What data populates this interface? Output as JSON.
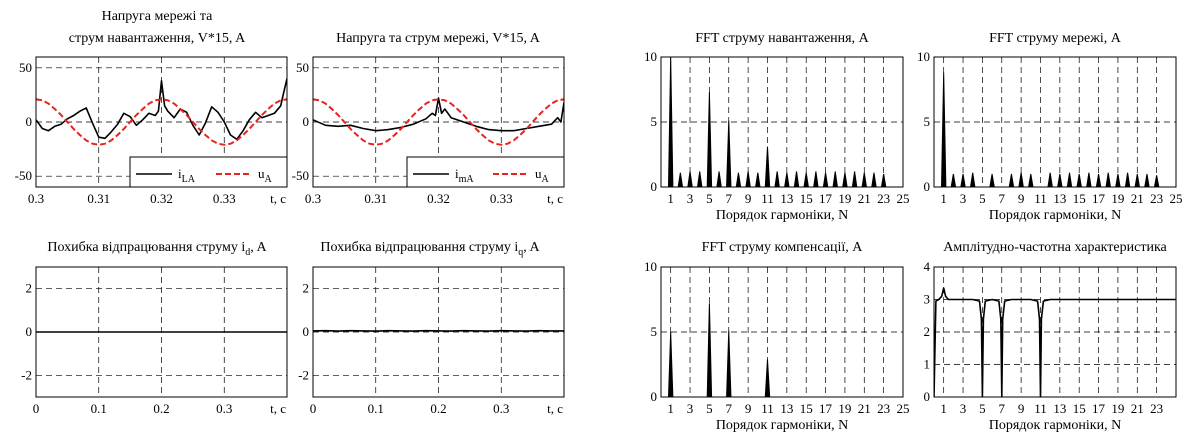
{
  "chart_data": [
    {
      "type": "line",
      "title": [
        "Напруга мережі та",
        "струм навантаження, V*15, A"
      ],
      "xlabel": "t, c",
      "xlim": [
        0.3,
        0.34
      ],
      "ylim": [
        -60,
        60
      ],
      "xticks": [
        {
          "v": 0.3,
          "label": "0.3"
        },
        {
          "v": 0.31,
          "label": "0.31"
        },
        {
          "v": 0.32,
          "label": "0.32"
        },
        {
          "v": 0.33,
          "label": "0.33"
        }
      ],
      "yticks": [
        {
          "v": 50,
          "label": "50"
        },
        {
          "v": 0,
          "label": "0"
        },
        {
          "v": -50,
          "label": "-50"
        }
      ],
      "grid": true,
      "legend_position": "bottom-right",
      "series": [
        {
          "name": "i",
          "sub": "LA",
          "color": "#000000",
          "dash": false,
          "x": [
            0.3,
            0.301,
            0.302,
            0.303,
            0.304,
            0.305,
            0.306,
            0.307,
            0.308,
            0.309,
            0.31,
            0.311,
            0.312,
            0.313,
            0.314,
            0.315,
            0.316,
            0.317,
            0.318,
            0.319,
            0.3195,
            0.32,
            0.3205,
            0.321,
            0.322,
            0.323,
            0.324,
            0.325,
            0.326,
            0.327,
            0.328,
            0.329,
            0.33,
            0.331,
            0.332,
            0.333,
            0.334,
            0.335,
            0.336,
            0.337,
            0.338,
            0.339,
            0.3395,
            0.34
          ],
          "y": [
            2,
            -6,
            -8,
            -4,
            -2,
            3,
            6,
            10,
            13,
            -1,
            -14,
            -15,
            -9,
            -2,
            8,
            5,
            -3,
            2,
            8,
            6,
            10,
            38,
            15,
            10,
            4,
            12,
            9,
            -3,
            -12,
            -1,
            14,
            9,
            0,
            -12,
            -16,
            -8,
            2,
            9,
            4,
            6,
            8,
            15,
            28,
            40
          ]
        },
        {
          "name": "u",
          "sub": "A",
          "color": "#e8231e",
          "dash": true,
          "x": [
            0.3,
            0.301,
            0.302,
            0.303,
            0.304,
            0.305,
            0.306,
            0.307,
            0.308,
            0.309,
            0.31,
            0.311,
            0.312,
            0.313,
            0.314,
            0.315,
            0.316,
            0.317,
            0.318,
            0.319,
            0.32,
            0.321,
            0.322,
            0.323,
            0.324,
            0.325,
            0.326,
            0.327,
            0.328,
            0.329,
            0.33,
            0.331,
            0.332,
            0.333,
            0.334,
            0.335,
            0.336,
            0.337,
            0.338,
            0.339,
            0.34
          ],
          "y": [
            21,
            20,
            17,
            12,
            6.5,
            0,
            -6.5,
            -12,
            -17,
            -20,
            -21,
            -20,
            -17,
            -12,
            -6.5,
            0,
            6.5,
            12,
            17,
            20,
            21,
            20,
            17,
            12,
            6.5,
            0,
            -6.5,
            -12,
            -17,
            -20,
            -21,
            -20,
            -17,
            -12,
            -6.5,
            0,
            6.5,
            12,
            17,
            20,
            21
          ]
        }
      ]
    },
    {
      "type": "line",
      "title": [
        "Напруга та струм мережі, V*15, A"
      ],
      "xlabel": "t, c",
      "xlim": [
        0.3,
        0.34
      ],
      "ylim": [
        -60,
        60
      ],
      "xticks": [
        {
          "v": 0.3,
          "label": "0.3"
        },
        {
          "v": 0.31,
          "label": "0.31"
        },
        {
          "v": 0.32,
          "label": "0.32"
        },
        {
          "v": 0.33,
          "label": "0.33"
        }
      ],
      "yticks": [
        {
          "v": 50,
          "label": "50"
        },
        {
          "v": 0,
          "label": "0"
        },
        {
          "v": -50,
          "label": "-50"
        }
      ],
      "grid": true,
      "legend_position": "bottom-right",
      "series": [
        {
          "name": "i",
          "sub": "mA",
          "color": "#000000",
          "dash": false,
          "x": [
            0.3,
            0.302,
            0.304,
            0.306,
            0.308,
            0.31,
            0.312,
            0.314,
            0.316,
            0.318,
            0.319,
            0.3195,
            0.32,
            0.3205,
            0.321,
            0.322,
            0.324,
            0.326,
            0.328,
            0.33,
            0.332,
            0.334,
            0.336,
            0.338,
            0.339,
            0.3395,
            0.34
          ],
          "y": [
            2,
            -3,
            -4,
            -3,
            -6,
            -8,
            -7,
            -5,
            -2,
            3,
            8,
            6,
            22,
            8,
            12,
            4,
            0,
            -4,
            -7,
            -8,
            -8,
            -6,
            -4,
            -2,
            4,
            0,
            18
          ]
        },
        {
          "name": "u",
          "sub": "A",
          "color": "#e8231e",
          "dash": true,
          "x": [
            0.3,
            0.301,
            0.302,
            0.303,
            0.304,
            0.305,
            0.306,
            0.307,
            0.308,
            0.309,
            0.31,
            0.311,
            0.312,
            0.313,
            0.314,
            0.315,
            0.316,
            0.317,
            0.318,
            0.319,
            0.32,
            0.321,
            0.322,
            0.323,
            0.324,
            0.325,
            0.326,
            0.327,
            0.328,
            0.329,
            0.33,
            0.331,
            0.332,
            0.333,
            0.334,
            0.335,
            0.336,
            0.337,
            0.338,
            0.339,
            0.34
          ],
          "y": [
            21,
            20,
            17,
            12,
            6.5,
            0,
            -6.5,
            -12,
            -17,
            -20,
            -21,
            -20,
            -17,
            -12,
            -6.5,
            0,
            6.5,
            12,
            17,
            20,
            21,
            20,
            17,
            12,
            6.5,
            0,
            -6.5,
            -12,
            -17,
            -20,
            -21,
            -20,
            -17,
            -12,
            -6.5,
            0,
            6.5,
            12,
            17,
            20,
            21
          ]
        }
      ]
    },
    {
      "type": "line",
      "title": [
        "Похибка відпрацювання струму i",
        "d",
        ", A"
      ],
      "xlabel": "t, c",
      "xlim": [
        0,
        0.4
      ],
      "ylim": [
        -3,
        3
      ],
      "xticks": [
        {
          "v": 0,
          "label": "0"
        },
        {
          "v": 0.1,
          "label": "0.1"
        },
        {
          "v": 0.2,
          "label": "0.2"
        },
        {
          "v": 0.3,
          "label": "0.3"
        }
      ],
      "yticks": [
        {
          "v": 2,
          "label": "2"
        },
        {
          "v": 0,
          "label": "0"
        },
        {
          "v": -2,
          "label": "-2"
        }
      ],
      "grid": true,
      "series": [
        {
          "color": "#000000",
          "dash": false,
          "x": [
            0,
            0.4
          ],
          "y": [
            0,
            0
          ]
        }
      ]
    },
    {
      "type": "line",
      "title": [
        "Похибка відпрацювання струму i",
        "q",
        ", A"
      ],
      "xlabel": "t, c",
      "xlim": [
        0,
        0.4
      ],
      "ylim": [
        -3,
        3
      ],
      "xticks": [
        {
          "v": 0,
          "label": "0"
        },
        {
          "v": 0.1,
          "label": "0.1"
        },
        {
          "v": 0.2,
          "label": "0.2"
        },
        {
          "v": 0.3,
          "label": "0.3"
        }
      ],
      "yticks": [
        {
          "v": 2,
          "label": "2"
        },
        {
          "v": 0,
          "label": "0"
        },
        {
          "v": -2,
          "label": "-2"
        }
      ],
      "grid": true,
      "series": [
        {
          "color": "#000000",
          "dash": false,
          "x": [
            0,
            0.02,
            0.04,
            0.06,
            0.08,
            0.1,
            0.12,
            0.14,
            0.16,
            0.18,
            0.2,
            0.22,
            0.24,
            0.26,
            0.28,
            0.3,
            0.32,
            0.34,
            0.36,
            0.38,
            0.4
          ],
          "y": [
            0.05,
            0.06,
            0.04,
            0.06,
            0.05,
            0.04,
            0.06,
            0.05,
            0.04,
            0.06,
            0.05,
            0.04,
            0.06,
            0.05,
            0.04,
            0.06,
            0.05,
            0.04,
            0.06,
            0.05,
            0.05
          ]
        }
      ]
    },
    {
      "type": "bar",
      "title": [
        "FFT струму навантаження, A"
      ],
      "xlabel": "Порядок гармоніки, N",
      "xlim": [
        0,
        25
      ],
      "ylim": [
        0,
        10
      ],
      "xticks": [
        {
          "v": 1,
          "label": "1"
        },
        {
          "v": 3,
          "label": "3"
        },
        {
          "v": 5,
          "label": "5"
        },
        {
          "v": 7,
          "label": "7"
        },
        {
          "v": 9,
          "label": "9"
        },
        {
          "v": 11,
          "label": "11"
        },
        {
          "v": 13,
          "label": "13"
        },
        {
          "v": 15,
          "label": "15"
        },
        {
          "v": 17,
          "label": "17"
        },
        {
          "v": 19,
          "label": "19"
        },
        {
          "v": 21,
          "label": "21"
        },
        {
          "v": 23,
          "label": "23"
        },
        {
          "v": 25,
          "label": "25"
        }
      ],
      "yticks": [
        {
          "v": 10,
          "label": "10"
        },
        {
          "v": 5,
          "label": "5"
        },
        {
          "v": 0,
          "label": "0"
        }
      ],
      "grid": true,
      "x": [
        1,
        2,
        3,
        4,
        5,
        6,
        7,
        8,
        9,
        10,
        11,
        12,
        13,
        14,
        15,
        16,
        17,
        18,
        19,
        20,
        21,
        22,
        23
      ],
      "values": [
        10,
        1.1,
        1.2,
        1.2,
        7.3,
        1.2,
        5.1,
        1.1,
        1.2,
        1.1,
        3.1,
        1.2,
        1.1,
        1.2,
        1.1,
        1.2,
        1.1,
        1.2,
        1.1,
        1.2,
        1.1,
        1.1,
        1.0
      ]
    },
    {
      "type": "bar",
      "title": [
        "FFT струму мережі, A"
      ],
      "xlabel": "Порядок гармоніки, N",
      "xlim": [
        0,
        25
      ],
      "ylim": [
        0,
        10
      ],
      "xticks": [
        {
          "v": 1,
          "label": "1"
        },
        {
          "v": 3,
          "label": "3"
        },
        {
          "v": 5,
          "label": "5"
        },
        {
          "v": 7,
          "label": "7"
        },
        {
          "v": 9,
          "label": "9"
        },
        {
          "v": 11,
          "label": "11"
        },
        {
          "v": 13,
          "label": "13"
        },
        {
          "v": 15,
          "label": "15"
        },
        {
          "v": 17,
          "label": "17"
        },
        {
          "v": 19,
          "label": "19"
        },
        {
          "v": 21,
          "label": "21"
        },
        {
          "v": 23,
          "label": "23"
        },
        {
          "v": 25,
          "label": "25"
        }
      ],
      "yticks": [
        {
          "v": 10,
          "label": "10"
        },
        {
          "v": 5,
          "label": "5"
        },
        {
          "v": 0,
          "label": "0"
        }
      ],
      "grid": true,
      "x": [
        1,
        2,
        3,
        4,
        6,
        8,
        9,
        10,
        12,
        13,
        14,
        15,
        16,
        17,
        18,
        19,
        20,
        21,
        22,
        23
      ],
      "values": [
        8.8,
        1.0,
        1.0,
        1.1,
        1.0,
        1.0,
        1.1,
        1.0,
        1.1,
        1.0,
        1.1,
        1.0,
        1.1,
        1.0,
        1.1,
        1.0,
        1.1,
        1.0,
        1.0,
        0.9
      ]
    },
    {
      "type": "bar",
      "title": [
        "FFT струму компенсації, A"
      ],
      "xlabel": "Порядок гармоніки, N",
      "xlim": [
        0,
        25
      ],
      "ylim": [
        0,
        10
      ],
      "xticks": [
        {
          "v": 1,
          "label": "1"
        },
        {
          "v": 3,
          "label": "3"
        },
        {
          "v": 5,
          "label": "5"
        },
        {
          "v": 7,
          "label": "7"
        },
        {
          "v": 9,
          "label": "9"
        },
        {
          "v": 11,
          "label": "11"
        },
        {
          "v": 13,
          "label": "13"
        },
        {
          "v": 15,
          "label": "15"
        },
        {
          "v": 17,
          "label": "17"
        },
        {
          "v": 19,
          "label": "19"
        },
        {
          "v": 21,
          "label": "21"
        },
        {
          "v": 23,
          "label": "23"
        },
        {
          "v": 25,
          "label": "25"
        }
      ],
      "yticks": [
        {
          "v": 10,
          "label": "10"
        },
        {
          "v": 5,
          "label": "5"
        },
        {
          "v": 0,
          "label": "0"
        }
      ],
      "grid": true,
      "x": [
        1,
        5,
        7,
        11
      ],
      "values": [
        5.0,
        7.2,
        5.1,
        2.9
      ]
    },
    {
      "type": "line",
      "title": [
        "Амплітудно-частотна характеристика"
      ],
      "xlabel": "Порядок гармоніки, N",
      "xlim": [
        0,
        25
      ],
      "ylim": [
        0,
        4
      ],
      "xticks": [
        {
          "v": 1,
          "label": "1"
        },
        {
          "v": 3,
          "label": "3"
        },
        {
          "v": 5,
          "label": "5"
        },
        {
          "v": 7,
          "label": "7"
        },
        {
          "v": 9,
          "label": "9"
        },
        {
          "v": 11,
          "label": "11"
        },
        {
          "v": 13,
          "label": "13"
        },
        {
          "v": 15,
          "label": "15"
        },
        {
          "v": 17,
          "label": "17"
        },
        {
          "v": 19,
          "label": "19"
        },
        {
          "v": 21,
          "label": "21"
        },
        {
          "v": 23,
          "label": "23"
        }
      ],
      "yticks": [
        {
          "v": 4,
          "label": "4"
        },
        {
          "v": 3,
          "label": "3"
        },
        {
          "v": 2,
          "label": "2"
        },
        {
          "v": 1,
          "label": "1"
        },
        {
          "v": 0,
          "label": "0"
        }
      ],
      "grid": true,
      "series": [
        {
          "color": "#000000",
          "dash": false,
          "x": [
            0,
            0.2,
            0.5,
            0.8,
            1.0,
            1.2,
            1.5,
            2,
            3,
            4,
            4.7,
            4.9,
            5.0,
            5.1,
            5.3,
            6,
            6.7,
            6.9,
            7.0,
            7.1,
            7.3,
            8,
            9,
            10,
            10.7,
            10.9,
            11.0,
            11.1,
            11.3,
            12,
            15,
            20,
            25
          ],
          "y": [
            0,
            2.95,
            3.0,
            3.1,
            3.35,
            3.1,
            3.0,
            3.0,
            3.0,
            3.0,
            2.95,
            2.4,
            0,
            2.4,
            2.95,
            3.0,
            2.95,
            2.4,
            0,
            2.4,
            2.95,
            3.0,
            3.0,
            3.0,
            2.95,
            2.4,
            0,
            2.4,
            2.95,
            3.0,
            3.0,
            3.0,
            3.0
          ]
        }
      ]
    }
  ]
}
